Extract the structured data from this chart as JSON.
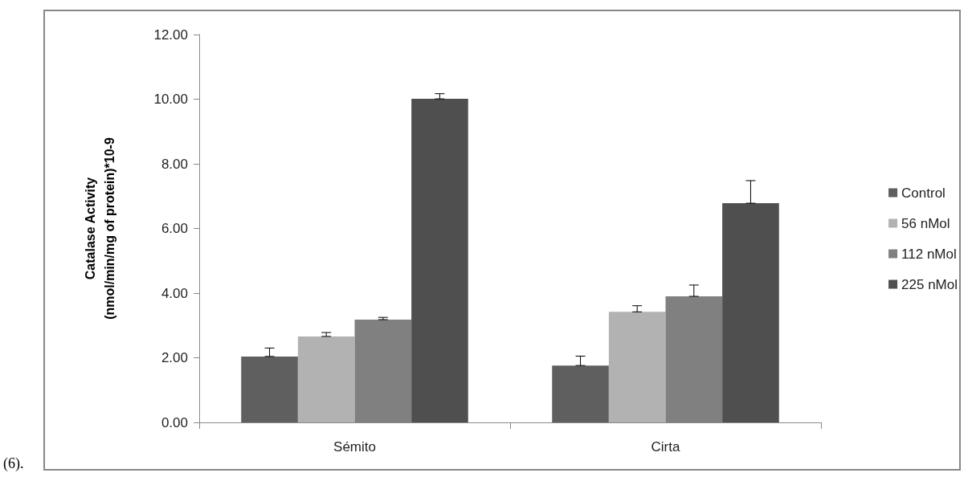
{
  "chart_data": {
    "type": "bar",
    "ylabel": "Catalase Activity\n(nmol/min/mg of protein)*10-9",
    "categories": [
      "Sémito",
      "Cirta"
    ],
    "series": [
      {
        "name": "Control",
        "color": "#5f5f5f",
        "values": [
          2.04,
          1.76
        ],
        "errors": [
          [
            2.04,
            2.3
          ],
          [
            1.76,
            2.05
          ]
        ]
      },
      {
        "name": "56 nMol",
        "color": "#b2b2b2",
        "values": [
          2.66,
          3.42
        ],
        "errors": [
          [
            2.66,
            2.78
          ],
          [
            3.42,
            3.61
          ]
        ]
      },
      {
        "name": "112 nMol",
        "color": "#808080",
        "values": [
          3.18,
          3.9
        ],
        "errors": [
          [
            3.18,
            3.25
          ],
          [
            3.9,
            4.25
          ]
        ]
      },
      {
        "name": "225 nMol",
        "color": "#4f4f4f",
        "values": [
          10.01,
          6.78
        ],
        "errors": [
          [
            10.01,
            10.17
          ],
          [
            6.78,
            7.48
          ]
        ]
      }
    ],
    "ylim": [
      0,
      12
    ],
    "yticks": [
      {
        "value": 0,
        "label": "0.00"
      },
      {
        "value": 2,
        "label": "2.00"
      },
      {
        "value": 4,
        "label": "4.00"
      },
      {
        "value": 6,
        "label": "6.00"
      },
      {
        "value": 8,
        "label": "8.00"
      },
      {
        "value": 10,
        "label": "10.00"
      },
      {
        "value": 12,
        "label": "12.00"
      }
    ],
    "grid": false,
    "legend": "right",
    "annotations": [
      "(6)."
    ]
  }
}
